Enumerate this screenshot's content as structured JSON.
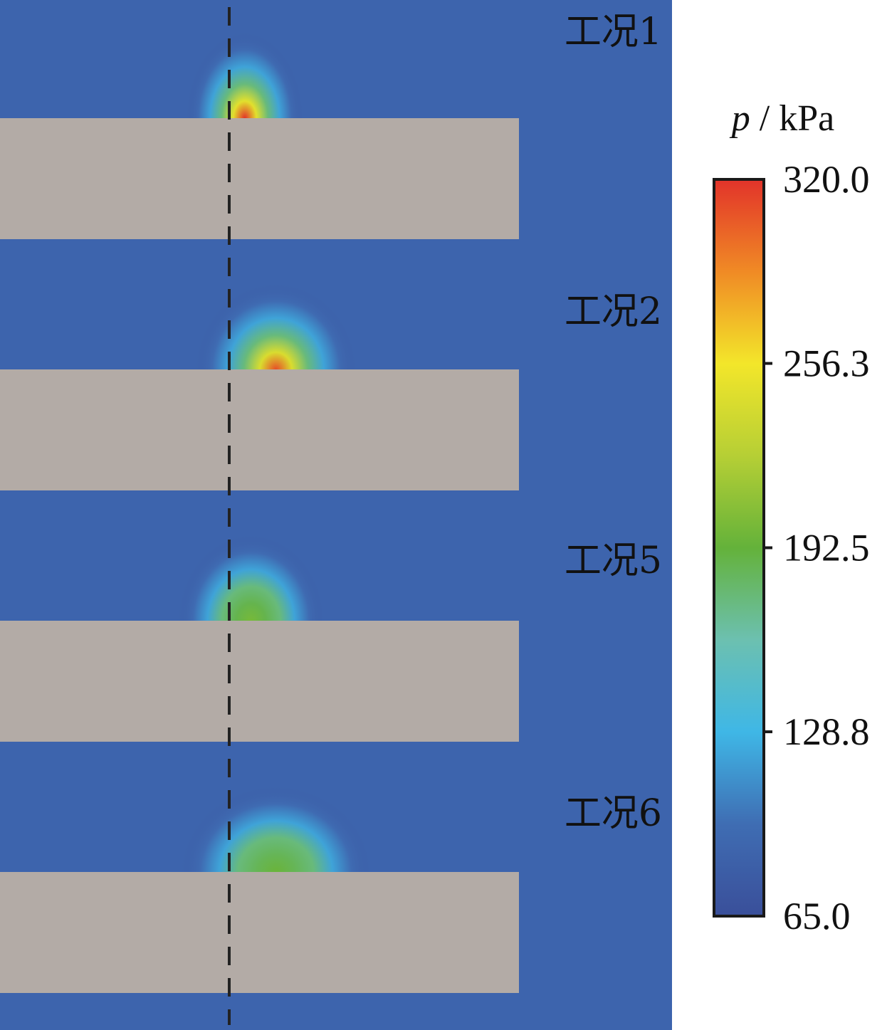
{
  "cases": [
    {
      "label": "工况1",
      "hotspot_peak_kpa": 320,
      "hotspot_offset": 0.05,
      "hotspot_width": 0.16
    },
    {
      "label": "工况2",
      "hotspot_peak_kpa": 310,
      "hotspot_offset": 0.15,
      "hotspot_width": 0.22
    },
    {
      "label": "工况5",
      "hotspot_peak_kpa": 200,
      "hotspot_offset": 0.07,
      "hotspot_width": 0.2
    },
    {
      "label": "工况6",
      "hotspot_peak_kpa": 195,
      "hotspot_offset": 0.15,
      "hotspot_width": 0.26
    }
  ],
  "colorbar": {
    "variable": "p",
    "unit": "kPa",
    "ticks": [
      "320.0",
      "256.3",
      "192.5",
      "128.8",
      "65.0"
    ],
    "min": 65.0,
    "max": 320.0,
    "colors": [
      "#3a4f9a",
      "#3f6db3",
      "#3fb7e6",
      "#6cc0b0",
      "#64b23a",
      "#b6cf35",
      "#f3e62a",
      "#f08a25",
      "#e2332a"
    ]
  },
  "colors": {
    "background": "#3d64ad",
    "structure": "#b3aba6",
    "dashed_line": "#222222"
  }
}
